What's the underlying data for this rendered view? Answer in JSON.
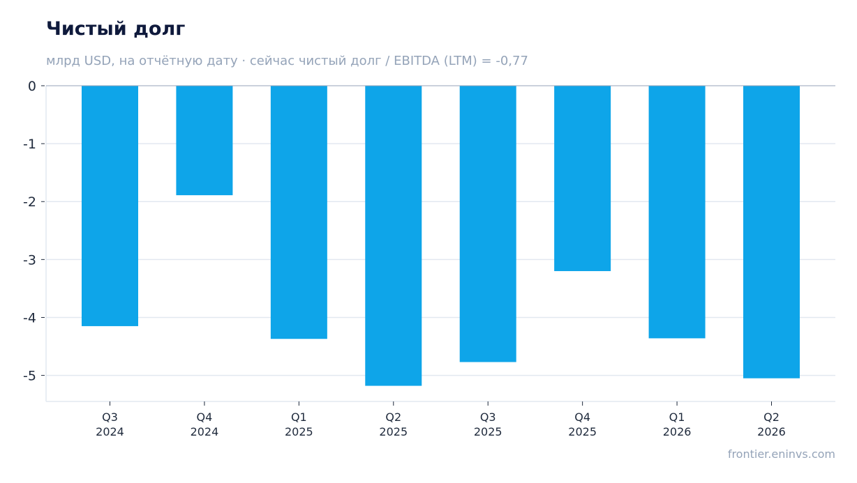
{
  "header": {
    "title": "Чистый долг",
    "subtitle": "млрд USD, на отчётную дату · сейчас чистый долг / EBITDA (LTM) = -0,77"
  },
  "footer": {
    "source": "frontier.eninvs.com"
  },
  "colors": {
    "bar": "#0ea5e9",
    "grid": "#e2e8f0",
    "axis": "#94a3b8",
    "text": "#1e293b"
  },
  "chart_data": {
    "type": "bar",
    "title": "Чистый долг",
    "subtitle": "млрд USD, на отчётную дату · сейчас чистый долг / EBITDA (LTM) = -0,77",
    "xlabel": "",
    "ylabel": "",
    "categories": [
      [
        "Q3",
        "2024"
      ],
      [
        "Q4",
        "2024"
      ],
      [
        "Q1",
        "2025"
      ],
      [
        "Q2",
        "2025"
      ],
      [
        "Q3",
        "2025"
      ],
      [
        "Q4",
        "2025"
      ],
      [
        "Q1",
        "2026"
      ],
      [
        "Q2",
        "2026"
      ]
    ],
    "values": [
      -4.15,
      -1.89,
      -4.37,
      -5.18,
      -4.77,
      -3.2,
      -4.36,
      -5.05
    ],
    "ylim": [
      -5.45,
      0
    ],
    "yticks": [
      0,
      -1,
      -2,
      -3,
      -4,
      -5
    ],
    "ytick_labels": [
      "0",
      "-1",
      "-2",
      "-3",
      "-4",
      "-5"
    ],
    "grid": true,
    "legend": "none"
  }
}
